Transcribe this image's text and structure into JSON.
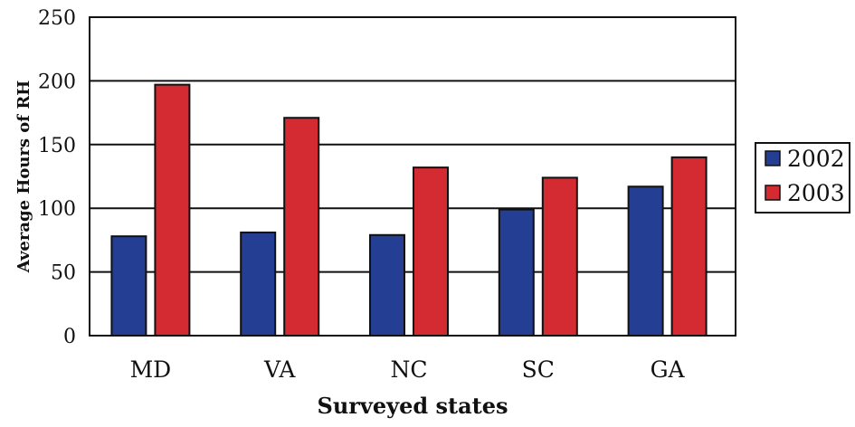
{
  "chart_data": {
    "type": "bar",
    "categories": [
      "MD",
      "VA",
      "NC",
      "SC",
      "GA"
    ],
    "series": [
      {
        "name": "2002",
        "color": "#233e92",
        "values": [
          78,
          81,
          79,
          99,
          117
        ]
      },
      {
        "name": "2003",
        "color": "#d42a31",
        "values": [
          197,
          171,
          132,
          124,
          140
        ]
      }
    ],
    "title": "",
    "xlabel": "Surveyed states",
    "ylabel": "Average Hours of RH",
    "ylim": [
      0,
      250
    ],
    "yticks": [
      "0",
      "50",
      "100",
      "150",
      "200",
      "250"
    ],
    "grid": true,
    "legend": "right"
  }
}
